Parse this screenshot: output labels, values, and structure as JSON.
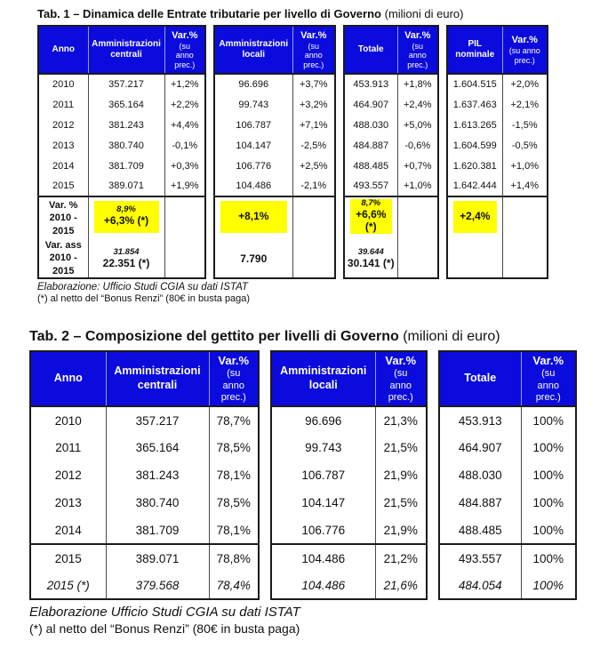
{
  "colors": {
    "header_bg": "#0b0bdd",
    "header_text": "#ffffff",
    "highlight": "#ffff00",
    "border": "#1b1b1b"
  },
  "table1": {
    "title_bold": "Tab. 1 – Dinamica delle Entrate tributarie per livello di Governo",
    "title_unit": "(milioni di euro)",
    "header": {
      "anno": "Anno",
      "centrali": "Amministrazioni centrali",
      "locali": "Amministrazioni locali",
      "totale": "Totale",
      "pil": "PIL\nnominale",
      "var_label": "Var.%",
      "var_sub3": "(su\nanno\nprec.)",
      "var_sub2": "(su anno\nprec.)"
    },
    "rows": [
      {
        "anno": "2010",
        "centrali": "357.217",
        "var_c": "+1,2%",
        "locali": "96.696",
        "var_l": "+3,7%",
        "totale": "453.913",
        "var_t": "+1,8%",
        "pil": "1.604.515",
        "var_p": "+2,0%"
      },
      {
        "anno": "2011",
        "centrali": "365.164",
        "var_c": "+2,2%",
        "locali": "99.743",
        "var_l": "+3,2%",
        "totale": "464.907",
        "var_t": "+2,4%",
        "pil": "1.637.463",
        "var_p": "+2,1%"
      },
      {
        "anno": "2012",
        "centrali": "381.243",
        "var_c": "+4,4%",
        "locali": "106.787",
        "var_l": "+7,1%",
        "totale": "488.030",
        "var_t": "+5,0%",
        "pil": "1.613.265",
        "var_p": "-1,5%"
      },
      {
        "anno": "2013",
        "centrali": "380.740",
        "var_c": "-0,1%",
        "locali": "104.147",
        "var_l": "-2,5%",
        "totale": "484.887",
        "var_t": "-0,6%",
        "pil": "1.604.599",
        "var_p": "-0,5%"
      },
      {
        "anno": "2014",
        "centrali": "381.709",
        "var_c": "+0,3%",
        "locali": "106.776",
        "var_l": "+2,5%",
        "totale": "488.485",
        "var_t": "+0,7%",
        "pil": "1.620.381",
        "var_p": "+1,0%"
      },
      {
        "anno": "2015",
        "centrali": "389.071",
        "var_c": "+1,9%",
        "locali": "104.486",
        "var_l": "-2,1%",
        "totale": "493.557",
        "var_t": "+1,0%",
        "pil": "1.642.444",
        "var_p": "+1,4%"
      }
    ],
    "summary_var": {
      "label": "Var. %\n2010 -\n2015",
      "centrali_small": "8,9%",
      "centrali": "+6,3% (*)",
      "locali": "+8,1%",
      "totale_small": "8,7%",
      "totale": "+6,6% (*)",
      "pil": "+2,4%"
    },
    "summary_ass": {
      "label": "Var. ass\n2010 -\n2015",
      "centrali_small": "31.854",
      "centrali": "22.351 (*)",
      "locali": "7.790",
      "totale_small": "39.644",
      "totale": "30.141 (*)"
    },
    "footnotes": [
      "Elaborazione: Ufficio Studi CGIA su dati ISTAT",
      "(*) al netto del “Bonus Renzi” (80€ in busta paga)"
    ]
  },
  "table2": {
    "title_bold": "Tab. 2 – Composizione del gettito per livelli di Governo",
    "title_unit": "(milioni di euro)",
    "header": {
      "anno": "Anno",
      "centrali": "Amministrazioni centrali",
      "locali": "Amministrazioni locali",
      "totale": "Totale",
      "var_label": "Var.%",
      "var_sub3": "(su\nanno\nprec.)"
    },
    "rows": [
      {
        "anno": "2010",
        "centrali": "357.217",
        "pct_c": "78,7%",
        "locali": "96.696",
        "pct_l": "21,3%",
        "totale": "453.913",
        "pct_t": "100%"
      },
      {
        "anno": "2011",
        "centrali": "365.164",
        "pct_c": "78,5%",
        "locali": "99.743",
        "pct_l": "21,5%",
        "totale": "464.907",
        "pct_t": "100%"
      },
      {
        "anno": "2012",
        "centrali": "381.243",
        "pct_c": "78,1%",
        "locali": "106.787",
        "pct_l": "21,9%",
        "totale": "488.030",
        "pct_t": "100%"
      },
      {
        "anno": "2013",
        "centrali": "380.740",
        "pct_c": "78,5%",
        "locali": "104.147",
        "pct_l": "21,5%",
        "totale": "484.887",
        "pct_t": "100%"
      },
      {
        "anno": "2014",
        "centrali": "381.709",
        "pct_c": "78,1%",
        "locali": "106.776",
        "pct_l": "21,9%",
        "totale": "488.485",
        "pct_t": "100%"
      }
    ],
    "rows_bottom": [
      {
        "anno": "2015",
        "centrali": "389.071",
        "pct_c": "78,8%",
        "locali": "104.486",
        "pct_l": "21,2%",
        "totale": "493.557",
        "pct_t": "100%",
        "italic": false
      },
      {
        "anno": "2015 (*)",
        "centrali": "379.568",
        "pct_c": "78,4%",
        "locali": "104.486",
        "pct_l": "21,6%",
        "totale": "484.054",
        "pct_t": "100%",
        "italic": true
      }
    ],
    "footnotes": [
      "Elaborazione Ufficio Studi CGIA su dati ISTAT",
      "(*) al netto del “Bonus Renzi” (80€ in busta paga)"
    ]
  }
}
